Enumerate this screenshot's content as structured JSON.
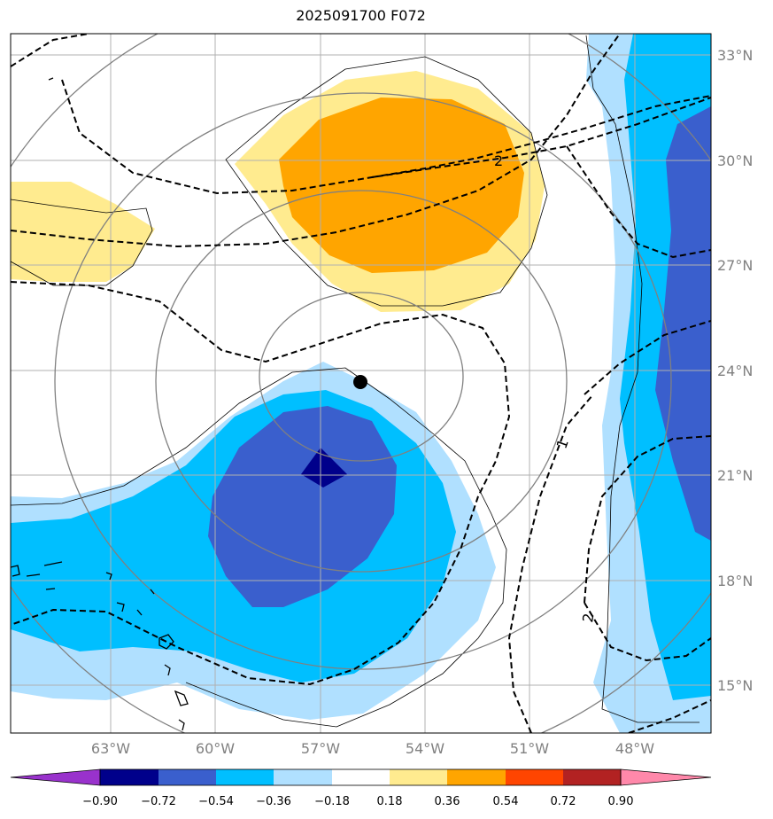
{
  "title": "2025091700 F072",
  "map": {
    "lat_labels": [
      "33°N",
      "30°N",
      "27°N",
      "24°N",
      "21°N",
      "18°N",
      "15°N"
    ],
    "lon_labels": [
      "63°W",
      "60°W",
      "57°W",
      "54°W",
      "51°W",
      "48°W"
    ],
    "contour_labels": [
      "2",
      "1",
      "2"
    ],
    "storm_center": {
      "lon": -55.8,
      "lat": 23.6
    }
  },
  "colorbar": {
    "labels": [
      "−0.90",
      "−0.72",
      "−0.54",
      "−0.36",
      "−0.18",
      "0.18",
      "0.36",
      "0.54",
      "0.72",
      "0.90"
    ],
    "colors": [
      "#9932cc",
      "#00008b",
      "#3a5fcd",
      "#00bfff",
      "#b0e0ff",
      "#ffffff",
      "#ffeb8f",
      "#ffa500",
      "#ff4500",
      "#b22222",
      "#ff88aa"
    ]
  },
  "colors": {
    "gray_contour": "#808080",
    "dashed_contour": "#000000",
    "grid": "#b0b0b0"
  }
}
